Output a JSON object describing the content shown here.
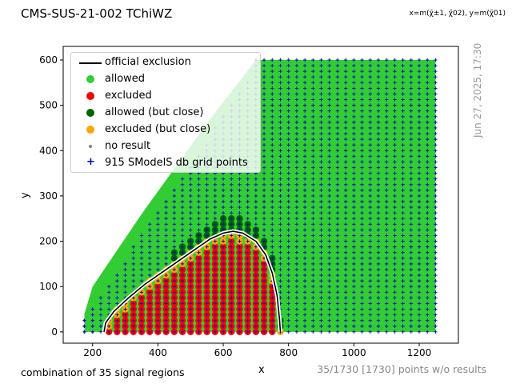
{
  "figure": {
    "title": "CMS-SUS-21-002 TChiWZ",
    "axis_definition": "x=m(χ̃±1, χ̃02), y=m(χ̃01)",
    "timestamp": "Jun 27, 2025, 17:30",
    "footnote": "combination of 35 signal regions",
    "no_result_note": "35/1730 [1730] points w/o results"
  },
  "chart_data": {
    "type": "scatter",
    "xlabel": "x",
    "ylabel": "y",
    "xlim": [
      110,
      1320
    ],
    "ylim": [
      -25,
      630
    ],
    "xticks": [
      200,
      400,
      600,
      800,
      1000,
      1200
    ],
    "yticks": [
      0,
      100,
      200,
      300,
      400,
      500,
      600
    ],
    "grid": false,
    "legend_position": "top-left",
    "legend": [
      {
        "key": "official",
        "label": "official exclusion",
        "marker": "line",
        "color": "#000000"
      },
      {
        "key": "allowed",
        "label": "allowed",
        "marker": "circle",
        "color": "#32cd32"
      },
      {
        "key": "excluded",
        "label": "excluded",
        "marker": "circle",
        "color": "#ff0000"
      },
      {
        "key": "allowed_close",
        "label": "allowed (but close)",
        "marker": "circle",
        "color": "#006400"
      },
      {
        "key": "excluded_close",
        "label": "excluded (but close)",
        "marker": "circle",
        "color": "#ffa500"
      },
      {
        "key": "noresult",
        "label": "no result",
        "marker": "small-circle",
        "color": "#808080"
      },
      {
        "key": "grid",
        "label": "915 SModelS db grid points",
        "marker": "plus",
        "color": "#0000cc"
      }
    ],
    "official_exclusion_curve": [
      [
        235,
        0
      ],
      [
        240,
        20
      ],
      [
        265,
        45
      ],
      [
        310,
        75
      ],
      [
        360,
        105
      ],
      [
        430,
        140
      ],
      [
        500,
        175
      ],
      [
        560,
        205
      ],
      [
        600,
        218
      ],
      [
        630,
        222
      ],
      [
        660,
        218
      ],
      [
        700,
        200
      ],
      [
        730,
        170
      ],
      [
        750,
        130
      ],
      [
        765,
        80
      ],
      [
        772,
        30
      ],
      [
        775,
        0
      ]
    ],
    "regions": {
      "grid_x_range": [
        175,
        1275
      ],
      "grid_y_range": [
        0,
        600
      ],
      "diagonal_offset": 0,
      "allowed_fill_color": "#32cd32"
    }
  }
}
